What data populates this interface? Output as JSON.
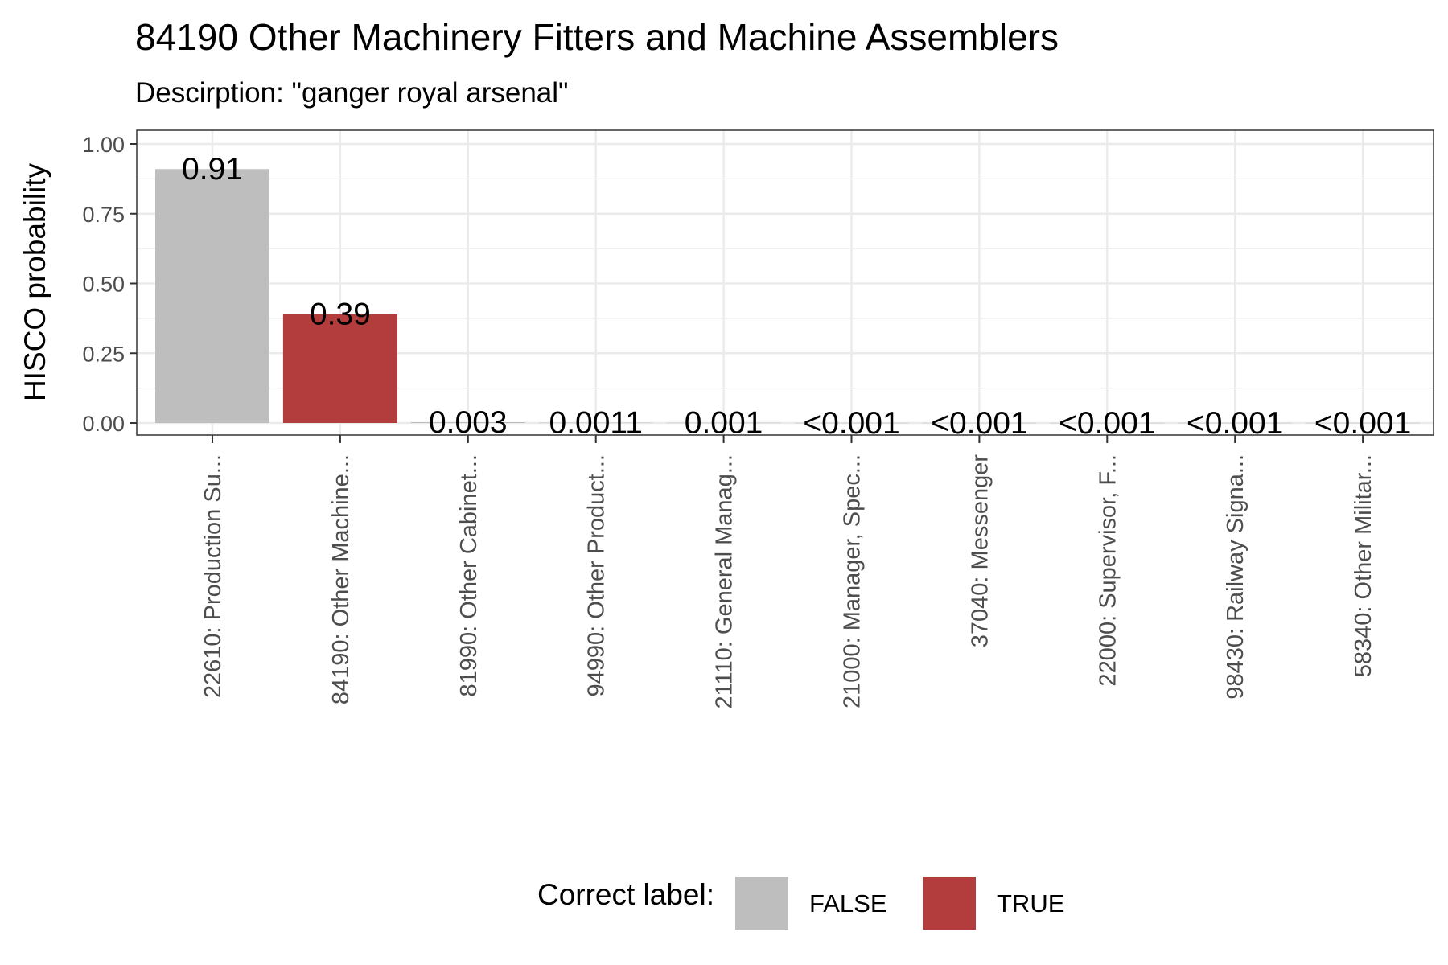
{
  "chart_data": {
    "type": "bar",
    "title": "84190 Other Machinery Fitters and Machine Assemblers",
    "subtitle": "Descirption: \"ganger royal arsenal\"",
    "xlabel": "",
    "ylabel": "HISCO probability",
    "ylim": [
      0,
      1.05
    ],
    "yticks": [
      0,
      0.25,
      0.5,
      0.75,
      1.0
    ],
    "ytick_labels": [
      "0.00",
      "0.25",
      "0.50",
      "0.75",
      "1.00"
    ],
    "grid": true,
    "legend_position": "bottom",
    "categories": [
      "22610: Production Su...",
      "84190: Other Machine...",
      "81990: Other Cabinet...",
      "94990: Other Product...",
      "21110: General Manag...",
      "21000: Manager, Spec...",
      "37040: Messenger",
      "22000: Supervisor, F...",
      "98430: Railway Signa...",
      "58340: Other Militar..."
    ],
    "values": [
      0.91,
      0.39,
      0.003,
      0.0011,
      0.001,
      0.0005,
      0.0005,
      0.0005,
      0.0005,
      0.0005
    ],
    "value_labels": [
      "0.91",
      "0.39",
      "0.003",
      "0.0011",
      "0.001",
      "<0.001",
      "<0.001",
      "<0.001",
      "<0.001",
      "<0.001"
    ],
    "correct": [
      false,
      true,
      false,
      false,
      false,
      false,
      false,
      false,
      false,
      false
    ],
    "legend": {
      "title": "Correct label:",
      "entries": [
        {
          "label": "FALSE",
          "color": "#bebebe"
        },
        {
          "label": "TRUE",
          "color": "#b33c3c"
        }
      ]
    }
  }
}
